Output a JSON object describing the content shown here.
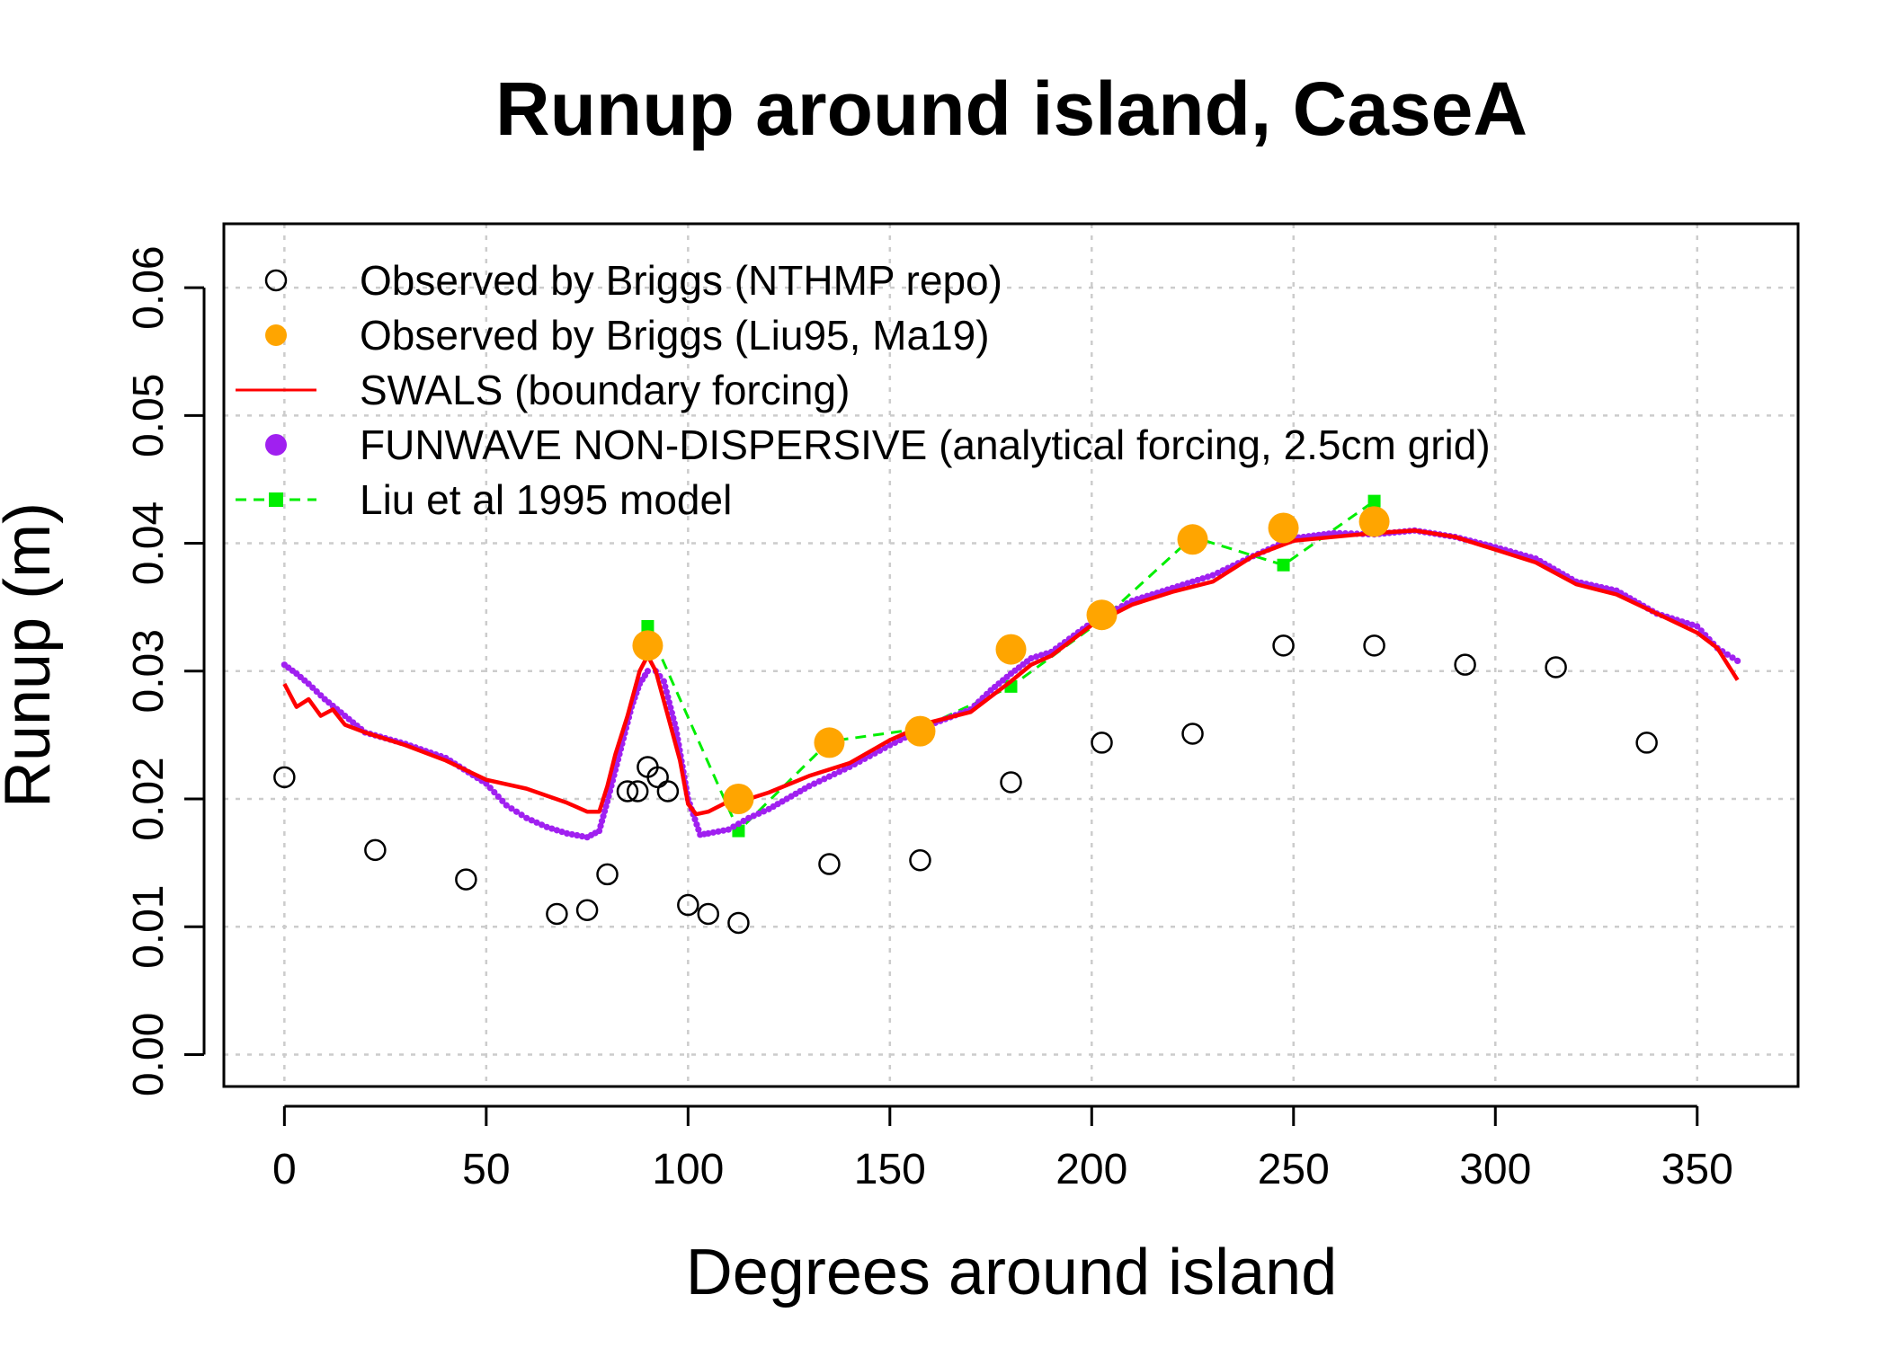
{
  "chart_data": {
    "type": "scatter",
    "title": "Runup around island, CaseA",
    "xlabel": "Degrees around island",
    "ylabel": "Runup (m)",
    "xlim": [
      -15,
      375
    ],
    "ylim": [
      -0.0025,
      0.065
    ],
    "xticks": [
      0,
      50,
      100,
      150,
      200,
      250,
      300,
      350
    ],
    "yticks": [
      0.0,
      0.01,
      0.02,
      0.03,
      0.04,
      0.05,
      0.06
    ],
    "xtick_labels": [
      "0",
      "50",
      "100",
      "150",
      "200",
      "250",
      "300",
      "350"
    ],
    "ytick_labels": [
      "0.00",
      "0.01",
      "0.02",
      "0.03",
      "0.04",
      "0.05",
      "0.06"
    ],
    "grid": true,
    "legend": "top-left",
    "series": [
      {
        "name": "Observed by Briggs (NTHMP repo)",
        "kind": "points",
        "marker": "open-circle",
        "color": "#000000",
        "x": [
          0,
          22.5,
          45,
          67.5,
          75,
          80,
          85,
          87.5,
          90,
          92.5,
          95,
          100,
          105,
          112.5,
          135,
          157.5,
          180,
          202.5,
          225,
          247.5,
          270,
          292.5,
          315,
          337.5
        ],
        "y": [
          0.0217,
          0.016,
          0.0137,
          0.011,
          0.0113,
          0.0141,
          0.0206,
          0.0206,
          0.0225,
          0.0217,
          0.0206,
          0.0117,
          0.011,
          0.0103,
          0.0149,
          0.0152,
          0.0213,
          0.0244,
          0.0251,
          0.032,
          0.032,
          0.0305,
          0.0303,
          0.0244
        ]
      },
      {
        "name": "Observed by Briggs (Liu95, Ma19)",
        "kind": "points",
        "marker": "filled-circle",
        "color": "#FFA500",
        "x": [
          90,
          112.5,
          135,
          157.5,
          180,
          202.5,
          225,
          247.5,
          270
        ],
        "y": [
          0.032,
          0.02,
          0.0244,
          0.0253,
          0.0317,
          0.0344,
          0.0403,
          0.0412,
          0.0417
        ]
      },
      {
        "name": "SWALS (boundary forcing)",
        "kind": "line",
        "color": "#FF0000",
        "x": [
          0,
          3,
          6,
          9,
          12,
          15,
          20,
          30,
          40,
          50,
          60,
          70,
          75,
          78,
          80,
          82,
          85,
          88,
          90,
          92,
          95,
          98,
          100,
          102,
          105,
          110,
          115,
          120,
          130,
          140,
          150,
          160,
          170,
          175,
          180,
          185,
          190,
          200,
          210,
          220,
          230,
          240,
          250,
          260,
          270,
          280,
          290,
          300,
          310,
          320,
          330,
          340,
          350,
          355,
          360
        ],
        "y": [
          0.029,
          0.0272,
          0.0278,
          0.0265,
          0.027,
          0.0258,
          0.0252,
          0.0242,
          0.023,
          0.0215,
          0.0208,
          0.0197,
          0.019,
          0.019,
          0.021,
          0.0235,
          0.0265,
          0.03,
          0.0312,
          0.03,
          0.0265,
          0.023,
          0.0196,
          0.0188,
          0.019,
          0.0198,
          0.02,
          0.0205,
          0.0218,
          0.0228,
          0.0246,
          0.026,
          0.0268,
          0.028,
          0.0292,
          0.0305,
          0.0312,
          0.0336,
          0.0352,
          0.0362,
          0.037,
          0.039,
          0.0402,
          0.0405,
          0.0408,
          0.041,
          0.0405,
          0.0395,
          0.0385,
          0.0368,
          0.036,
          0.0345,
          0.033,
          0.0318,
          0.0293
        ]
      },
      {
        "name": "FUNWAVE NON-DISPERSIVE (analytical forcing, 2.5cm grid)",
        "kind": "dots",
        "marker": "small-dot",
        "color": "#A020F0",
        "x": [
          0,
          3,
          6,
          10,
          15,
          20,
          30,
          40,
          50,
          55,
          60,
          65,
          70,
          75,
          78,
          80,
          83,
          86,
          88,
          90,
          92,
          94,
          97,
          100,
          103,
          105,
          110,
          115,
          120,
          130,
          140,
          150,
          160,
          170,
          175,
          180,
          185,
          190,
          200,
          210,
          220,
          230,
          240,
          250,
          260,
          270,
          280,
          290,
          300,
          310,
          320,
          330,
          340,
          350,
          355,
          360
        ],
        "y": [
          0.0305,
          0.0298,
          0.029,
          0.0278,
          0.0265,
          0.0252,
          0.0243,
          0.0232,
          0.0212,
          0.0195,
          0.0185,
          0.0178,
          0.0173,
          0.017,
          0.0175,
          0.0198,
          0.0235,
          0.0272,
          0.029,
          0.03,
          0.03,
          0.0292,
          0.0255,
          0.02,
          0.0172,
          0.0173,
          0.0176,
          0.0185,
          0.0192,
          0.021,
          0.0225,
          0.0242,
          0.0258,
          0.027,
          0.0285,
          0.0298,
          0.031,
          0.0315,
          0.0338,
          0.0355,
          0.0365,
          0.0375,
          0.039,
          0.0404,
          0.0408,
          0.0407,
          0.041,
          0.0405,
          0.0397,
          0.0388,
          0.037,
          0.0363,
          0.0345,
          0.0335,
          0.0318,
          0.0308
        ]
      },
      {
        "name": "Liu et al 1995 model",
        "kind": "dashed-line-square",
        "color": "#00EE00",
        "x": [
          90,
          112.5,
          135,
          157.5,
          180,
          202.5,
          225,
          247.5,
          270
        ],
        "y": [
          0.0335,
          0.0175,
          0.0245,
          0.0255,
          0.0288,
          0.034,
          0.0405,
          0.0383,
          0.0433
        ]
      }
    ]
  }
}
